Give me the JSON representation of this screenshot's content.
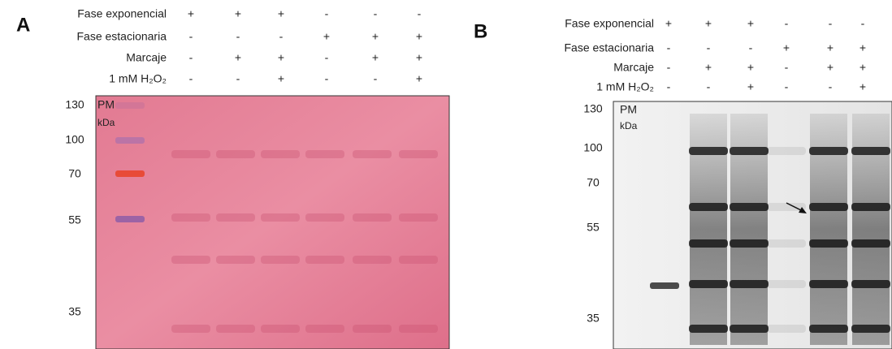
{
  "panels": [
    {
      "letter": "A",
      "conditions": [
        {
          "label": "Fase exponencial",
          "signs": [
            "+",
            "+",
            "+",
            "-",
            "-",
            "-"
          ]
        },
        {
          "label": "Fase estacionaria",
          "signs": [
            "-",
            "-",
            "-",
            "+",
            "+",
            "+"
          ]
        },
        {
          "label": "Marcaje",
          "signs": [
            "-",
            "+",
            "+",
            "-",
            "+",
            "+"
          ]
        },
        {
          "label": "1 mM H₂O₂",
          "signs": [
            "-",
            "-",
            "+",
            "-",
            "-",
            "+"
          ]
        }
      ],
      "marker": {
        "name": "PM",
        "unit": "kDa",
        "weights": [
          130,
          100,
          70,
          55,
          35
        ]
      }
    },
    {
      "letter": "B",
      "conditions": [
        {
          "label": "Fase exponencial",
          "signs": [
            "+",
            "+",
            "+",
            "-",
            "-",
            "-"
          ]
        },
        {
          "label": "Fase estacionaria",
          "signs": [
            "-",
            "-",
            "-",
            "+",
            "+",
            "+"
          ]
        },
        {
          "label": "Marcaje",
          "signs": [
            "-",
            "+",
            "+",
            "-",
            "+",
            "+"
          ]
        },
        {
          "label": "1 mM H₂O₂",
          "signs": [
            "-",
            "-",
            "+",
            "-",
            "-",
            "+"
          ]
        }
      ],
      "marker": {
        "name": "PM",
        "unit": "kDa",
        "weights": [
          130,
          100,
          70,
          55,
          35
        ]
      }
    }
  ]
}
